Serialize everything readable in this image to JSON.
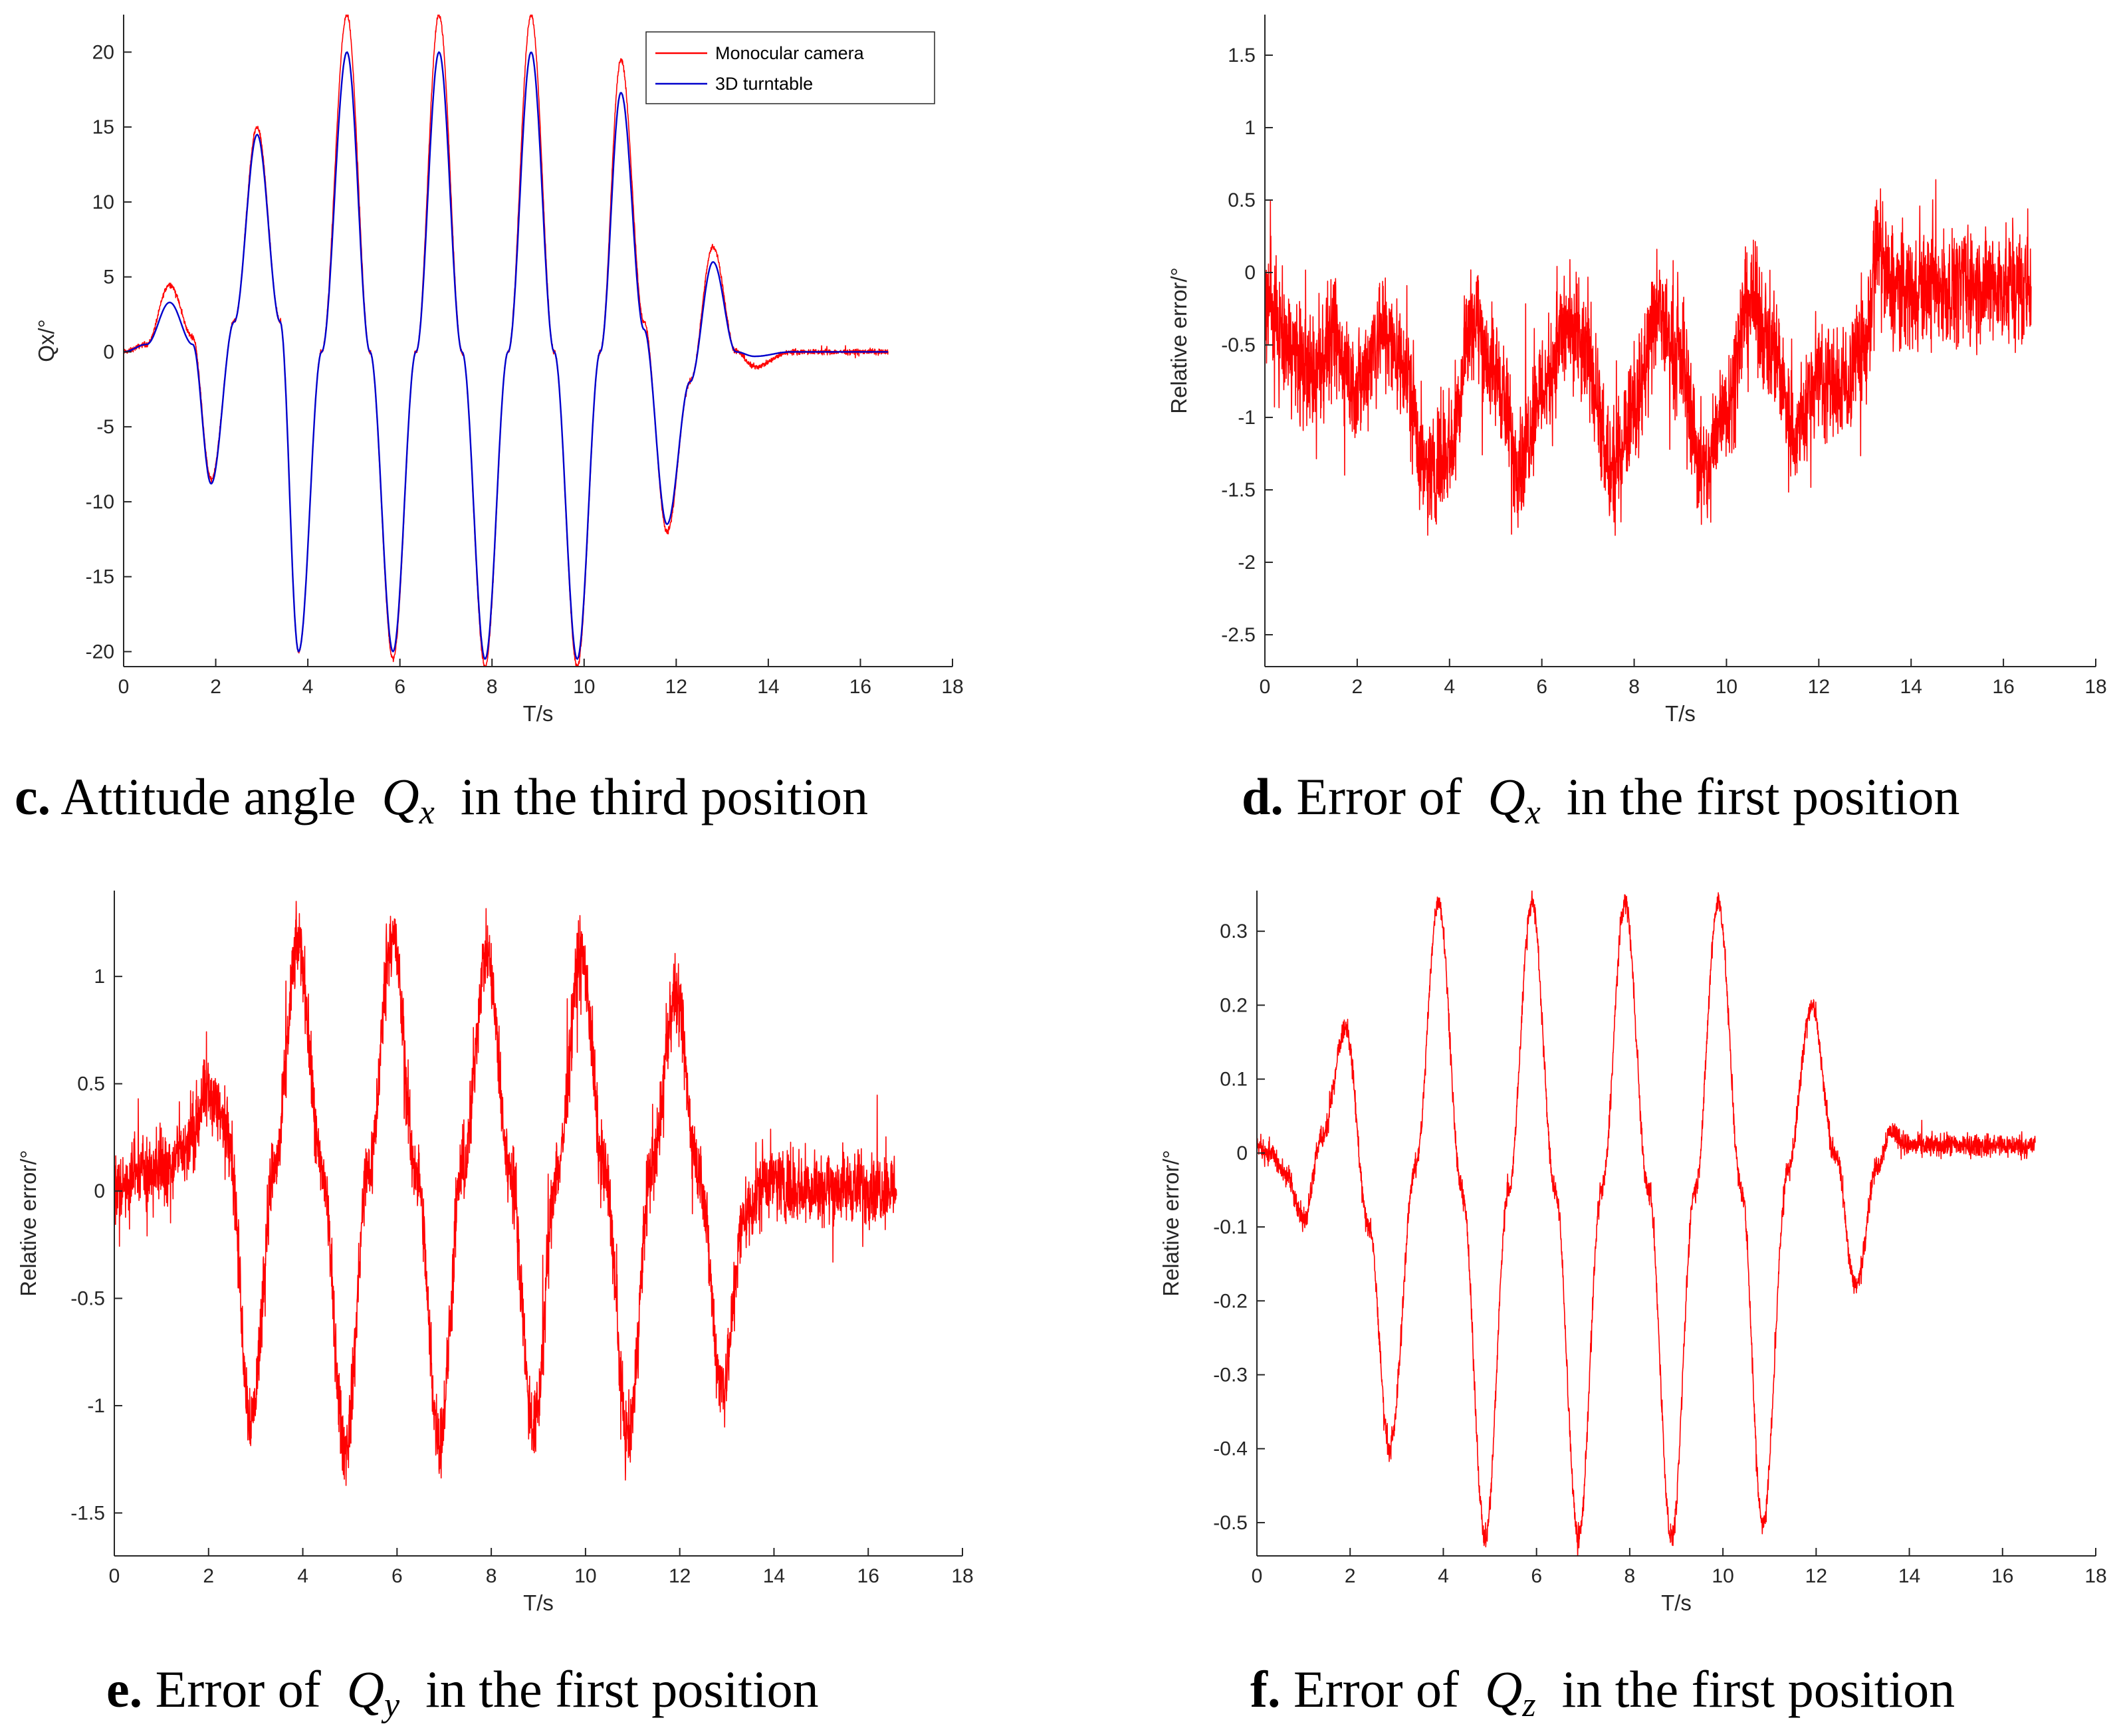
{
  "chart_data": [
    {
      "id": "c",
      "type": "line",
      "title": "",
      "xlabel": "T/s",
      "ylabel": "Qx/°",
      "xlim": [
        0,
        18
      ],
      "ylim": [
        -21,
        22.5
      ],
      "xticks": [
        0,
        2,
        4,
        6,
        8,
        10,
        12,
        14,
        16,
        18
      ],
      "yticks": [
        20,
        15,
        10,
        5,
        0,
        -5,
        -10,
        -15,
        -20
      ],
      "ytick_labels": [
        "20",
        "15",
        "10",
        "5",
        "0",
        "-5",
        "-10",
        "-15",
        "-20"
      ],
      "legend": {
        "position": "top-right",
        "entries": [
          "Monocular camera",
          "3D turntable"
        ]
      },
      "series": [
        {
          "name": "Monocular camera",
          "color": "#ff0000",
          "noise": 0.5,
          "x": [
            0,
            0.5,
            1,
            1.5,
            1.9,
            2.4,
            2.9,
            3.4,
            3.8,
            4.3,
            4.85,
            5.35,
            5.85,
            6.35,
            6.85,
            7.35,
            7.85,
            8.35,
            8.85,
            9.35,
            9.85,
            10.35,
            10.8,
            11.3,
            11.8,
            12.3,
            12.8,
            13.3,
            13.7,
            14.5,
            15.5,
            16.6
          ],
          "y": [
            0,
            0.5,
            4.5,
            1,
            -8.5,
            2,
            15,
            2,
            -20,
            0,
            22.5,
            0,
            -20.5,
            0,
            22.5,
            0,
            -21,
            0,
            22.5,
            0,
            -21,
            0,
            19.5,
            2,
            -12,
            -2,
            7,
            0,
            -1,
            0,
            0,
            0
          ]
        },
        {
          "name": "3D turntable",
          "color": "#0000cc",
          "noise": 0,
          "x": [
            0,
            0.5,
            1,
            1.5,
            1.9,
            2.4,
            2.9,
            3.4,
            3.8,
            4.3,
            4.85,
            5.35,
            5.85,
            6.35,
            6.85,
            7.35,
            7.85,
            8.35,
            8.85,
            9.35,
            9.85,
            10.35,
            10.8,
            11.3,
            11.8,
            12.3,
            12.8,
            13.3,
            13.7,
            14.5,
            15.5,
            16.6
          ],
          "y": [
            0,
            0.5,
            3.3,
            0.5,
            -8.8,
            2,
            14.5,
            2,
            -20,
            0,
            20,
            0,
            -20,
            0,
            20,
            0,
            -20.5,
            0,
            20,
            0,
            -20.5,
            0,
            17.3,
            1.5,
            -11.5,
            -2,
            6,
            0,
            -0.3,
            0,
            0,
            0
          ]
        }
      ],
      "caption": {
        "letter": "c.",
        "before": " Attitude angle ",
        "sym": "Q",
        "sub": "x",
        "after": " in the third position"
      }
    },
    {
      "id": "d",
      "type": "line",
      "title": "",
      "xlabel": "T/s",
      "ylabel": "Relative error/°",
      "xlim": [
        0,
        18
      ],
      "ylim": [
        -2.72,
        1.78
      ],
      "xticks": [
        0,
        2,
        4,
        6,
        8,
        10,
        12,
        14,
        16,
        18
      ],
      "yticks": [
        1.5,
        1,
        0.5,
        0,
        -0.5,
        -1,
        -1.5,
        -2,
        -2.5
      ],
      "ytick_labels": [
        "1.5",
        "1",
        "0.5",
        "0",
        "-0.5",
        "-1",
        "-1.5",
        "-2",
        "-2.5"
      ],
      "series": [
        {
          "name": "Error of Qx",
          "color": "#ff0000",
          "noise": 1.15,
          "x": [
            0,
            0.5,
            1,
            1.5,
            2,
            2.5,
            3,
            3.5,
            4,
            4.5,
            5,
            5.5,
            6,
            6.5,
            7,
            7.5,
            8,
            8.5,
            9,
            9.5,
            10,
            10.5,
            11,
            11.5,
            12,
            12.5,
            13,
            13.3,
            13.5,
            14,
            15,
            16,
            16.6
          ],
          "y": [
            -0.2,
            -0.5,
            -0.7,
            -0.5,
            -0.8,
            -0.4,
            -0.6,
            -1.4,
            -1.2,
            -0.3,
            -0.7,
            -1.3,
            -0.8,
            -0.4,
            -0.6,
            -1.4,
            -0.9,
            -0.3,
            -0.6,
            -1.4,
            -0.9,
            -0.2,
            -0.5,
            -1.1,
            -0.7,
            -0.8,
            -0.5,
            0.2,
            -0.1,
            -0.1,
            -0.1,
            -0.1,
            -0.1
          ]
        }
      ],
      "caption": {
        "letter": "d.",
        "before": " Error of ",
        "sym": "Q",
        "sub": "x",
        "after": " in the first position"
      }
    },
    {
      "id": "e",
      "type": "line",
      "title": "",
      "xlabel": "T/s",
      "ylabel": "Relative error/°",
      "xlim": [
        0,
        18
      ],
      "ylim": [
        -1.7,
        1.4
      ],
      "xticks": [
        0,
        2,
        4,
        6,
        8,
        10,
        12,
        14,
        16,
        18
      ],
      "yticks": [
        1,
        0.5,
        0,
        -0.5,
        -1,
        -1.5
      ],
      "ytick_labels": [
        "1",
        "0.5",
        "0",
        "-0.5",
        "-1",
        "-1.5"
      ],
      "series": [
        {
          "name": "Error of Qy",
          "color": "#ff0000",
          "noise": 0.5,
          "x": [
            0,
            0.5,
            1,
            1.5,
            2,
            2.4,
            2.9,
            3.4,
            3.9,
            4.4,
            4.9,
            5.4,
            5.9,
            6.4,
            6.9,
            7.4,
            7.9,
            8.4,
            8.9,
            9.4,
            9.9,
            10.4,
            10.9,
            11.4,
            11.9,
            12.4,
            12.9,
            13.4,
            13.8,
            14.5,
            15.5,
            16.6
          ],
          "y": [
            0,
            0.1,
            0.1,
            0.2,
            0.45,
            0.3,
            -1.05,
            0.1,
            1.15,
            0.1,
            -1.2,
            0.1,
            1.2,
            0.1,
            -1.15,
            0.1,
            1.1,
            0.1,
            -1.1,
            0.1,
            1.1,
            0.1,
            -1.15,
            0.1,
            0.9,
            0.1,
            -0.9,
            -0.1,
            0.05,
            0.02,
            0.02,
            0.02
          ]
        }
      ],
      "caption": {
        "letter": "e.",
        "before": " Error of ",
        "sym": "Q",
        "sub": "y",
        "after": " in the first position"
      }
    },
    {
      "id": "f",
      "type": "line",
      "title": "",
      "xlabel": "T/s",
      "ylabel": "Relative error/°",
      "xlim": [
        0,
        18
      ],
      "ylim": [
        -0.545,
        0.355
      ],
      "xticks": [
        0,
        2,
        4,
        6,
        8,
        10,
        12,
        14,
        16,
        18
      ],
      "yticks": [
        0.3,
        0.2,
        0.1,
        0,
        -0.1,
        -0.2,
        -0.3,
        -0.4,
        -0.5
      ],
      "ytick_labels": [
        "0.3",
        "0.2",
        "0.1",
        "0",
        "-0.1",
        "-0.2",
        "-0.3",
        "-0.4",
        "-0.5"
      ],
      "series": [
        {
          "name": "Error of Qz",
          "color": "#ff0000",
          "noise": 0.045,
          "x": [
            0,
            0.3,
            0.6,
            1,
            1.4,
            1.9,
            2.4,
            2.85,
            3.4,
            3.9,
            4.4,
            4.9,
            5.4,
            5.9,
            6.4,
            6.9,
            7.4,
            7.9,
            8.4,
            8.9,
            9.4,
            9.9,
            10.4,
            10.85,
            11.4,
            11.9,
            12.4,
            12.85,
            13.3,
            13.6,
            14,
            15,
            16,
            16.7
          ],
          "y": [
            0.01,
            0.0,
            -0.03,
            -0.09,
            0.02,
            0.17,
            -0.1,
            -0.4,
            -0.02,
            0.34,
            -0.05,
            -0.52,
            -0.05,
            0.34,
            -0.05,
            -0.52,
            -0.05,
            0.34,
            -0.05,
            -0.52,
            -0.05,
            0.34,
            -0.05,
            -0.5,
            -0.02,
            0.2,
            0.0,
            -0.18,
            -0.02,
            0.03,
            0.01,
            0.01,
            0.01,
            0.01
          ]
        }
      ],
      "caption": {
        "letter": "f.",
        "before": " Error of ",
        "sym": "Q",
        "sub": "z",
        "after": " in the first position"
      }
    }
  ]
}
